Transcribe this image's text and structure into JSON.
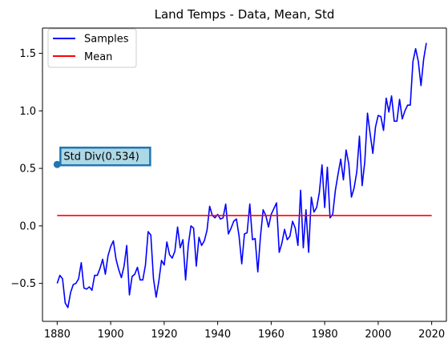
{
  "chart_data": {
    "type": "line",
    "title": "Land Temps - Data, Mean, Std",
    "xlabel": "",
    "ylabel": "",
    "xlim": [
      1874.5,
      2025.5
    ],
    "ylim": [
      -0.83,
      1.72
    ],
    "x_ticks": [
      1880,
      1900,
      1920,
      1940,
      1960,
      1980,
      2000,
      2020
    ],
    "y_ticks": [
      -0.5,
      0.0,
      0.5,
      1.0,
      1.5
    ],
    "y_tick_labels": [
      "−0.5",
      "0.0",
      "0.5",
      "1.0",
      "1.5"
    ],
    "grid": false,
    "legend_position": "upper-left",
    "series": [
      {
        "name": "Samples",
        "color": "#0000ff",
        "x_start": 1880,
        "x_step": 1,
        "values": [
          -0.5,
          -0.43,
          -0.46,
          -0.67,
          -0.71,
          -0.58,
          -0.51,
          -0.5,
          -0.46,
          -0.32,
          -0.54,
          -0.55,
          -0.53,
          -0.56,
          -0.43,
          -0.43,
          -0.37,
          -0.29,
          -0.42,
          -0.26,
          -0.18,
          -0.13,
          -0.29,
          -0.38,
          -0.45,
          -0.35,
          -0.17,
          -0.6,
          -0.44,
          -0.42,
          -0.36,
          -0.47,
          -0.47,
          -0.34,
          -0.05,
          -0.08,
          -0.46,
          -0.62,
          -0.48,
          -0.3,
          -0.34,
          -0.14,
          -0.25,
          -0.28,
          -0.22,
          -0.01,
          -0.19,
          -0.12,
          -0.47,
          -0.17,
          -0.0,
          -0.02,
          -0.35,
          -0.1,
          -0.17,
          -0.13,
          -0.04,
          0.17,
          0.09,
          0.07,
          0.1,
          0.06,
          0.07,
          0.19,
          -0.07,
          -0.02,
          0.04,
          0.06,
          -0.09,
          -0.33,
          -0.07,
          -0.06,
          0.19,
          -0.12,
          -0.11,
          -0.4,
          -0.09,
          0.14,
          0.09,
          -0.01,
          0.1,
          0.15,
          0.2,
          -0.23,
          -0.15,
          -0.03,
          -0.12,
          -0.09,
          0.04,
          -0.02,
          -0.17,
          0.31,
          -0.19,
          0.14,
          -0.23,
          0.25,
          0.12,
          0.16,
          0.29,
          0.53,
          0.16,
          0.51,
          0.07,
          0.1,
          0.31,
          0.45,
          0.58,
          0.4,
          0.66,
          0.54,
          0.25,
          0.33,
          0.47,
          0.78,
          0.35,
          0.56,
          0.98,
          0.8,
          0.63,
          0.86,
          0.96,
          0.95,
          0.83,
          1.11,
          0.99,
          1.13,
          0.91,
          0.91,
          1.1,
          0.93,
          1.0,
          1.05,
          1.05,
          1.43,
          1.54,
          1.43,
          1.22,
          1.45,
          1.59
        ]
      },
      {
        "name": "Mean",
        "color": "#ff0000",
        "x": [
          1880,
          2020
        ],
        "values": [
          0.09,
          0.09
        ]
      }
    ],
    "annotations": [
      {
        "text": "Std Div(0.534)",
        "x": 1880,
        "y": 0.534,
        "marker_color": "#1f77b4",
        "box_fill": "#add8e6",
        "box_edge": "#1f77b4"
      }
    ]
  }
}
